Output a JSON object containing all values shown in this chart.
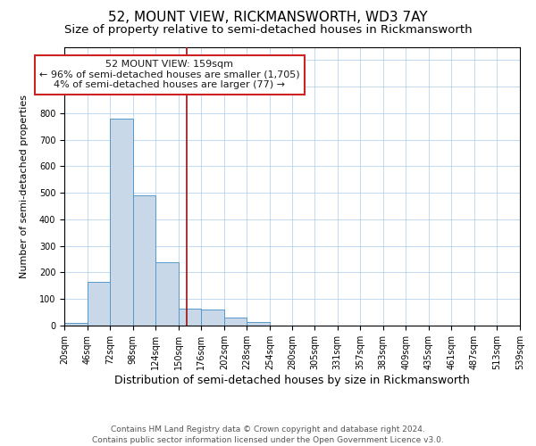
{
  "title": "52, MOUNT VIEW, RICKMANSWORTH, WD3 7AY",
  "subtitle": "Size of property relative to semi-detached houses in Rickmansworth",
  "xlabel": "Distribution of semi-detached houses by size in Rickmansworth",
  "ylabel": "Number of semi-detached properties",
  "footer1": "Contains HM Land Registry data © Crown copyright and database right 2024.",
  "footer2": "Contains public sector information licensed under the Open Government Licence v3.0.",
  "annotation_line1": "52 MOUNT VIEW: 159sqm",
  "annotation_line2": "← 96% of semi-detached houses are smaller (1,705)",
  "annotation_line3": "4% of semi-detached houses are larger (77) →",
  "bar_left_edges": [
    20,
    46,
    72,
    98,
    124,
    150,
    176,
    202,
    228,
    254,
    280,
    305,
    331,
    357,
    383,
    409,
    435,
    461,
    487,
    513
  ],
  "bar_widths": [
    26,
    26,
    26,
    26,
    26,
    26,
    26,
    26,
    26,
    26,
    25,
    26,
    26,
    26,
    26,
    26,
    26,
    26,
    26,
    26
  ],
  "bar_heights": [
    10,
    165,
    780,
    490,
    240,
    65,
    60,
    30,
    15,
    0,
    0,
    0,
    0,
    0,
    0,
    0,
    0,
    0,
    0,
    0
  ],
  "bar_color": "#c8d8e8",
  "bar_edge_color": "#5599cc",
  "vline_color": "#991111",
  "vline_x": 159,
  "ylim": [
    0,
    1050
  ],
  "xlim": [
    20,
    539
  ],
  "tick_labels": [
    "20sqm",
    "46sqm",
    "72sqm",
    "98sqm",
    "124sqm",
    "150sqm",
    "176sqm",
    "202sqm",
    "228sqm",
    "254sqm",
    "280sqm",
    "305sqm",
    "331sqm",
    "357sqm",
    "383sqm",
    "409sqm",
    "435sqm",
    "461sqm",
    "487sqm",
    "513sqm",
    "539sqm"
  ],
  "tick_positions": [
    20,
    46,
    72,
    98,
    124,
    150,
    176,
    202,
    228,
    254,
    280,
    305,
    331,
    357,
    383,
    409,
    435,
    461,
    487,
    513,
    539
  ],
  "annotation_box_color": "#cc2222",
  "annotation_text_color": "#1a1a1a",
  "bg_color": "#ffffff",
  "grid_color": "#aaccee",
  "title_fontsize": 11,
  "subtitle_fontsize": 9.5,
  "xlabel_fontsize": 9,
  "ylabel_fontsize": 8,
  "tick_fontsize": 7,
  "footer_fontsize": 6.5,
  "annotation_fontsize": 8
}
